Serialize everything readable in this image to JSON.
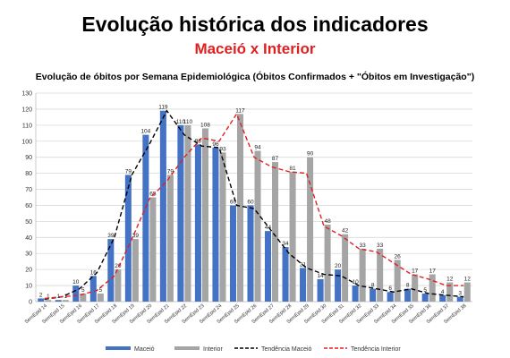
{
  "header": {
    "title": "Evolução histórica dos indicadores",
    "subtitle": "Maceió x Interior"
  },
  "colors": {
    "maceio": "#4472c4",
    "interior": "#a5a5a5",
    "trend_maceio": "#000000",
    "trend_interior": "#e02020",
    "subtitle": "#e02020"
  },
  "chart_data": {
    "type": "bar",
    "title": "Evolução de óbitos por Semana Epidemiológica (Óbitos Confirmados + \"Óbitos em Investigação\")",
    "categories": [
      "SemEpid 14",
      "SemEpid 15",
      "SemEpid 16",
      "SemEpid 17",
      "SemEpid 18",
      "SemEpid 19",
      "SemEpid 20",
      "SemEpid 21",
      "SemEpid 22",
      "SemEpid 23",
      "SemEpid 24",
      "SemEpid 25",
      "SemEpid 26",
      "SemEpid 27",
      "SemEpid 28",
      "SemEpid 29",
      "SemEpid 30",
      "SemEpid 31",
      "SemEpid 32",
      "SemEpid 33",
      "SemEpid 34",
      "SemEpid 35",
      "SemEpid 36",
      "SemEpid 37",
      "SemEpid 38"
    ],
    "series": [
      {
        "name": "Maceió",
        "values": [
          2,
          1,
          10,
          16,
          39,
          79,
          104,
          119,
          110,
          98,
          96,
          60,
          60,
          44,
          34,
          21,
          14,
          20,
          10,
          8,
          6,
          8,
          5,
          4,
          3
        ]
      },
      {
        "name": "Interior",
        "values": [
          1,
          1,
          5,
          5,
          20,
          39,
          65,
          79,
          110,
          108,
          93,
          117,
          94,
          87,
          81,
          90,
          48,
          42,
          33,
          33,
          26,
          17,
          17,
          12,
          12
        ]
      },
      {
        "name": "Tendência Maceió",
        "values": [
          1.5,
          3,
          8,
          18,
          40,
          79,
          98,
          119,
          104,
          97,
          96,
          60,
          58,
          44,
          30,
          21,
          17,
          16,
          10,
          8,
          6,
          8,
          5,
          4,
          3
        ]
      },
      {
        "name": "Tendência Interior",
        "values": [
          2,
          3,
          4,
          7,
          16,
          39,
          64,
          75,
          90,
          102,
          100,
          117,
          90,
          84,
          81,
          80,
          47,
          41,
          33,
          31,
          24,
          17,
          14,
          10,
          10
        ]
      }
    ],
    "ylim": [
      0,
      130
    ],
    "ytick_step": 10,
    "grid": true,
    "legend": "bottom"
  }
}
